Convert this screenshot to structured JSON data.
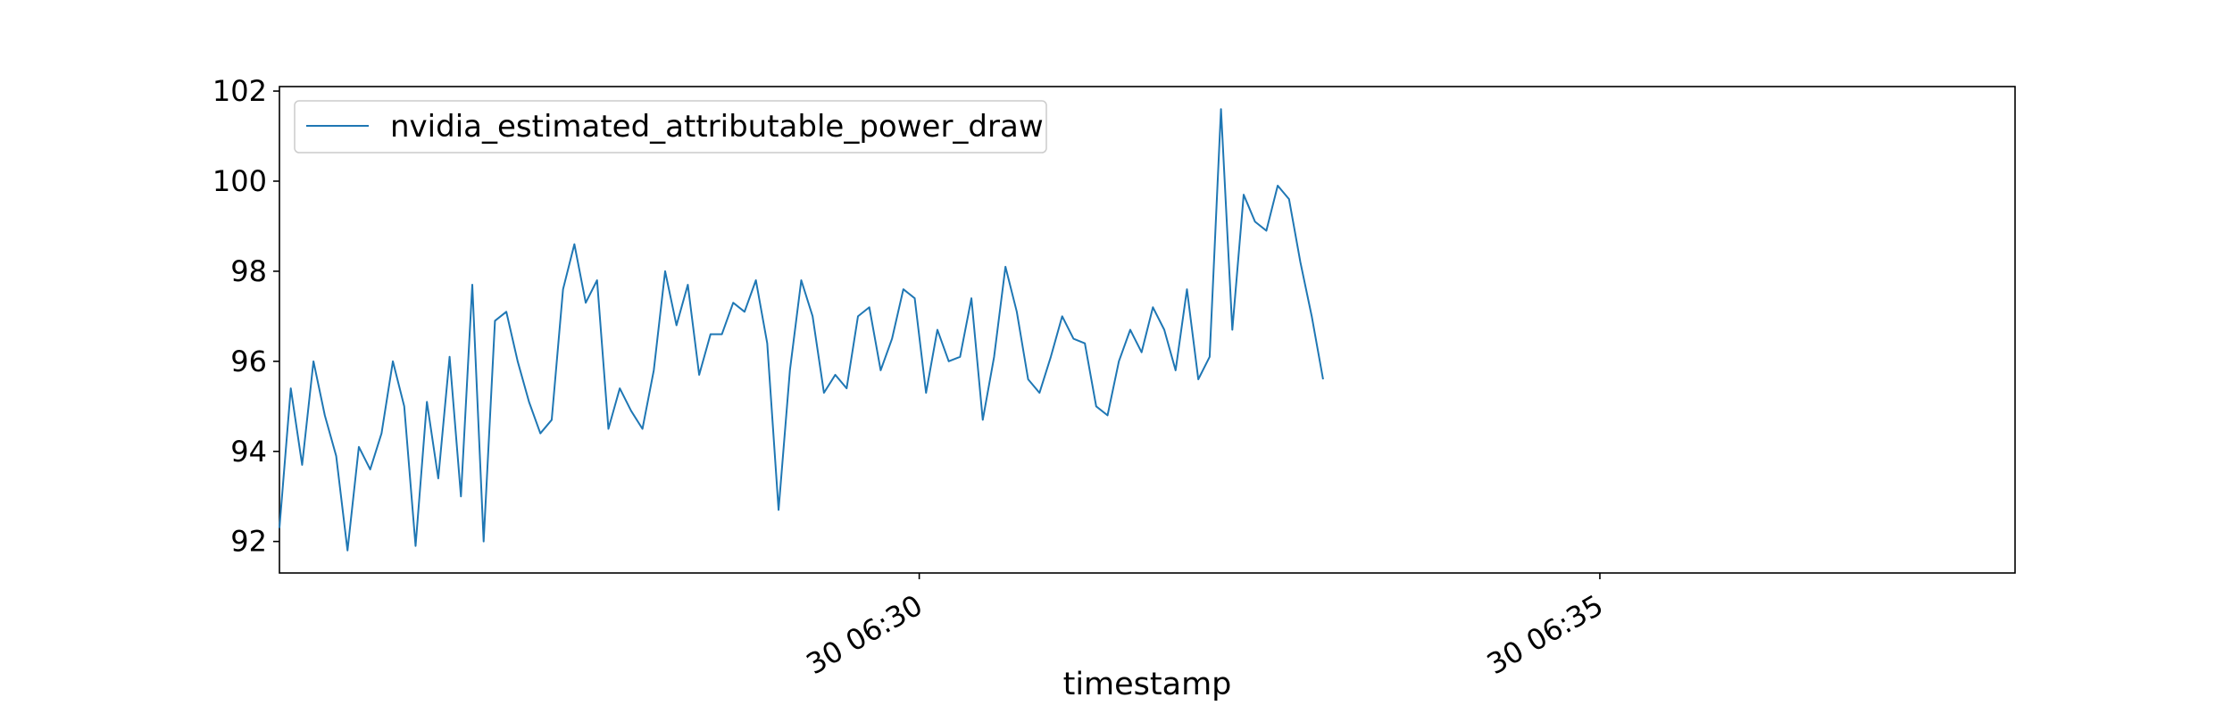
{
  "chart_data": {
    "type": "line",
    "title": "",
    "xlabel": "timestamp",
    "ylabel": "",
    "grid": false,
    "legend_position": "top-left",
    "line_color": "#1f77b4",
    "x_start": "06:25:18",
    "x_step_seconds": 5,
    "xlim": [
      "06:25:18",
      "06:38:03"
    ],
    "ylim": [
      91.3,
      102.1
    ],
    "x_ticks": [
      {
        "time": "06:30:00",
        "label": "30 06:30"
      },
      {
        "time": "06:35:00",
        "label": "30 06:35"
      }
    ],
    "y_ticks": [
      {
        "value": 92,
        "label": "92"
      },
      {
        "value": 94,
        "label": "94"
      },
      {
        "value": 96,
        "label": "96"
      },
      {
        "value": 98,
        "label": "98"
      },
      {
        "value": 100,
        "label": "100"
      },
      {
        "value": 102,
        "label": "102"
      }
    ],
    "series": [
      {
        "name": "nvidia_estimated_attributable_power_draw",
        "values": [
          92.3,
          95.4,
          93.7,
          96.0,
          94.8,
          93.9,
          91.8,
          94.1,
          93.6,
          94.4,
          96.0,
          95.0,
          91.9,
          95.1,
          93.4,
          96.1,
          93.0,
          97.7,
          92.0,
          96.9,
          97.1,
          96.0,
          95.1,
          94.4,
          94.7,
          97.6,
          98.6,
          97.3,
          97.8,
          94.5,
          95.4,
          94.9,
          94.5,
          95.8,
          98.0,
          96.8,
          97.7,
          95.7,
          96.6,
          96.6,
          97.3,
          97.1,
          97.8,
          96.4,
          92.7,
          95.8,
          97.8,
          97.0,
          95.3,
          95.7,
          95.4,
          97.0,
          97.2,
          95.8,
          96.5,
          97.6,
          97.4,
          95.3,
          96.7,
          96.0,
          96.1,
          97.4,
          94.7,
          96.1,
          98.1,
          97.1,
          95.6,
          95.3,
          96.1,
          97.0,
          96.5,
          96.4,
          95.0,
          94.8,
          96.0,
          96.7,
          96.2,
          97.2,
          96.7,
          95.8,
          97.6,
          95.6,
          96.1,
          101.6,
          96.7,
          99.7,
          99.1,
          98.9,
          99.9,
          99.6,
          98.2,
          97.0,
          95.6
        ]
      }
    ]
  }
}
